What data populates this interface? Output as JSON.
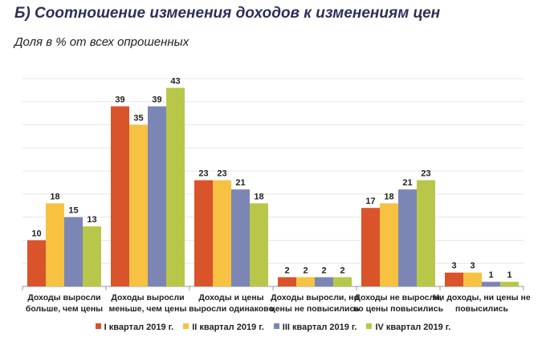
{
  "header": {
    "title": "Б) Соотношение изменения доходов к изменениям цен",
    "subtitle": "Доля в % от всех опрошенных"
  },
  "chart_data": {
    "type": "bar",
    "title": "Б) Соотношение изменения доходов к изменениям цен",
    "subtitle": "Доля в % от всех опрошенных",
    "xlabel": "",
    "ylabel": "",
    "ylim": [
      0,
      45
    ],
    "grid": true,
    "legend_position": "bottom",
    "categories": [
      [
        "Доходы выросли",
        "больше, чем цены"
      ],
      [
        "Доходы выросли",
        "меньше, чем цены"
      ],
      [
        "Доходы и цены",
        "выросли одинаково"
      ],
      [
        "Доходы выросли, но",
        "цены не повысились"
      ],
      [
        "Доходы не выросли,",
        "но цены повысились"
      ],
      [
        "Ни доходы, ни цены не",
        "повысились"
      ]
    ],
    "series": [
      {
        "name": "I квартал 2019 г.",
        "color": "#d9532b",
        "values": [
          10,
          39,
          23,
          2,
          17,
          3
        ]
      },
      {
        "name": "II квартал 2019 г.",
        "color": "#f7c242",
        "values": [
          18,
          35,
          23,
          2,
          18,
          3
        ]
      },
      {
        "name": "III квартал 2019 г.",
        "color": "#7b86b5",
        "values": [
          15,
          39,
          21,
          2,
          21,
          1
        ]
      },
      {
        "name": "IV квартал 2019 г.",
        "color": "#b8c74a",
        "values": [
          13,
          43,
          18,
          2,
          23,
          1
        ]
      }
    ]
  }
}
